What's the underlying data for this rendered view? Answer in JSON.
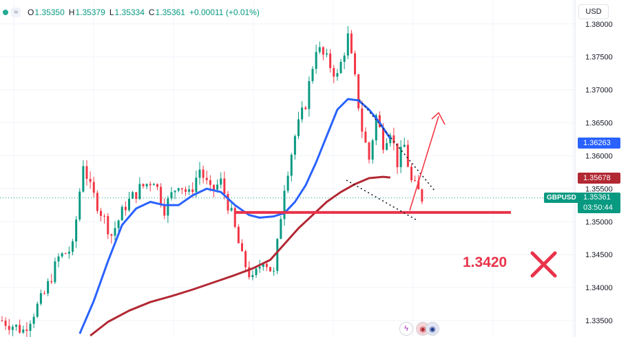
{
  "header": {
    "o_label": "O",
    "o_value": "1.35350",
    "h_label": "H",
    "h_value": "1.35379",
    "l_label": "L",
    "l_value": "1.35334",
    "c_label": "C",
    "c_value": "1.35361",
    "change": "+0.00011 (+0.01%)",
    "wave_icon": "≈"
  },
  "currency_button": "USD",
  "symbol_tag": "GBPUSD",
  "price_tag": {
    "price": "1.35361",
    "countdown": "03:50:44"
  },
  "ma_tags": {
    "blue": "1.36263",
    "red": "1.35678"
  },
  "annotation": {
    "text": "1.3420",
    "mark": "✕"
  },
  "bottom_icons": {
    "bolt": "ϟ",
    "us": "◉",
    "uk": "◉"
  },
  "colors": {
    "up": "#089981",
    "down": "#f23645",
    "ma_fast": "#2962ff",
    "ma_slow": "#b22833",
    "annotation": "#e8334a"
  },
  "chart_data": {
    "type": "candlestick",
    "symbol": "GBPUSD",
    "y_ticks": [
      "1.38000",
      "1.37500",
      "1.37000",
      "1.36500",
      "1.36000",
      "1.35500",
      "1.35000",
      "1.34500",
      "1.34000",
      "1.33500"
    ],
    "ylim": [
      1.3325,
      1.3805
    ],
    "x_count": 120,
    "price_path": [
      [
        0,
        1.335
      ],
      [
        6,
        1.3335
      ],
      [
        12,
        1.339
      ],
      [
        16,
        1.3445
      ],
      [
        20,
        1.346
      ],
      [
        23,
        1.359
      ],
      [
        25,
        1.355
      ],
      [
        31,
        1.348
      ],
      [
        35,
        1.3525
      ],
      [
        39,
        1.355
      ],
      [
        43,
        1.3565
      ],
      [
        46,
        1.352
      ],
      [
        50,
        1.356
      ],
      [
        53,
        1.354
      ],
      [
        56,
        1.358
      ],
      [
        59,
        1.3545
      ],
      [
        62,
        1.356
      ],
      [
        65,
        1.351
      ],
      [
        68,
        1.3445
      ],
      [
        71,
        1.341
      ],
      [
        74,
        1.3445
      ],
      [
        77,
        1.342
      ],
      [
        80,
        1.3555
      ],
      [
        83,
        1.363
      ],
      [
        86,
        1.368
      ],
      [
        89,
        1.3765
      ],
      [
        92,
        1.3745
      ],
      [
        95,
        1.372
      ],
      [
        98,
        1.378
      ],
      [
        100,
        1.3715
      ],
      [
        102,
        1.364
      ],
      [
        104,
        1.3595
      ],
      [
        106,
        1.366
      ],
      [
        108,
        1.362
      ],
      [
        110,
        1.364
      ],
      [
        112,
        1.359
      ],
      [
        114,
        1.3615
      ],
      [
        116,
        1.356
      ],
      [
        118,
        1.3545
      ],
      [
        119,
        1.3536
      ]
    ],
    "ma_fast": {
      "label": "1.36263",
      "points": [
        [
          22,
          1.333
        ],
        [
          26,
          1.338
        ],
        [
          30,
          1.344
        ],
        [
          34,
          1.3495
        ],
        [
          38,
          1.352
        ],
        [
          42,
          1.353
        ],
        [
          46,
          1.3525
        ],
        [
          50,
          1.3525
        ],
        [
          54,
          1.354
        ],
        [
          58,
          1.355
        ],
        [
          62,
          1.3545
        ],
        [
          66,
          1.3525
        ],
        [
          70,
          1.351
        ],
        [
          73,
          1.3506
        ],
        [
          77,
          1.3508
        ],
        [
          80,
          1.3513
        ],
        [
          83,
          1.353
        ],
        [
          86,
          1.3555
        ],
        [
          89,
          1.359
        ],
        [
          92,
          1.363
        ],
        [
          95,
          1.367
        ],
        [
          98,
          1.3686
        ],
        [
          101,
          1.3684
        ],
        [
          104,
          1.367
        ],
        [
          107,
          1.365
        ],
        [
          110,
          1.3626
        ]
      ]
    },
    "ma_slow": {
      "label": "1.35678",
      "points": [
        [
          25,
          1.3327
        ],
        [
          30,
          1.3348
        ],
        [
          36,
          1.3365
        ],
        [
          42,
          1.3378
        ],
        [
          48,
          1.3387
        ],
        [
          54,
          1.3397
        ],
        [
          60,
          1.3408
        ],
        [
          66,
          1.3419
        ],
        [
          71,
          1.3429
        ],
        [
          76,
          1.3442
        ],
        [
          80,
          1.3466
        ],
        [
          84,
          1.349
        ],
        [
          88,
          1.351
        ],
        [
          92,
          1.353
        ],
        [
          96,
          1.3545
        ],
        [
          100,
          1.3557
        ],
        [
          104,
          1.3566
        ],
        [
          108,
          1.3568
        ],
        [
          110,
          1.3567
        ]
      ]
    },
    "support_level": 1.3514,
    "current_price": 1.35361
  }
}
